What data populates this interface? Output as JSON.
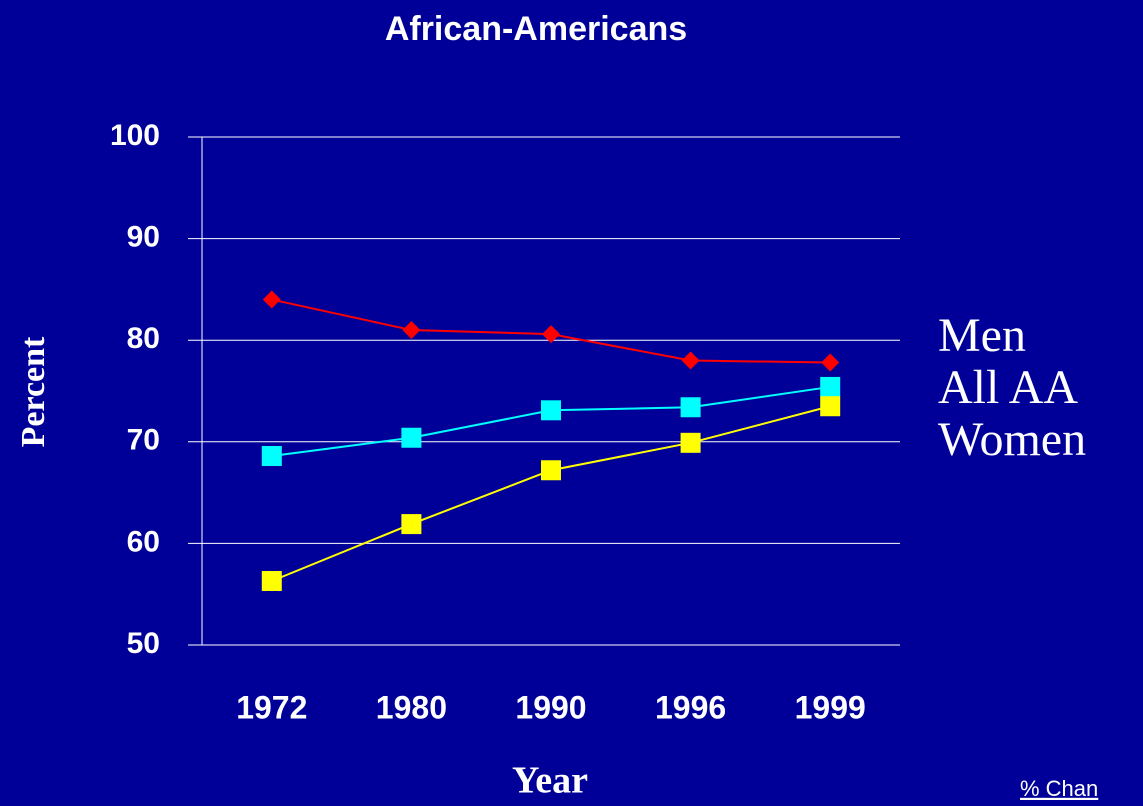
{
  "chart_data": {
    "type": "line",
    "title": "African-Americans",
    "x_label": "Year",
    "y_label": "Percent",
    "annotation": "% Chan",
    "categories": [
      "1972",
      "1980",
      "1990",
      "1996",
      "1999"
    ],
    "series": [
      {
        "name": "Men",
        "color": "#ff0000",
        "marker": "diamond",
        "values": [
          84,
          81,
          80.6,
          78,
          77.8
        ]
      },
      {
        "name": "All AA",
        "color": "#00ffff",
        "marker": "square",
        "values": [
          68.6,
          70.4,
          73.1,
          73.4,
          75.4
        ]
      },
      {
        "name": "Women",
        "color": "#ffff00",
        "marker": "square",
        "values": [
          56.3,
          61.9,
          67.2,
          69.9,
          73.5
        ]
      }
    ],
    "ylim": [
      50,
      100
    ],
    "yticks": [
      50,
      60,
      70,
      80,
      90,
      100
    ],
    "grid": true
  }
}
